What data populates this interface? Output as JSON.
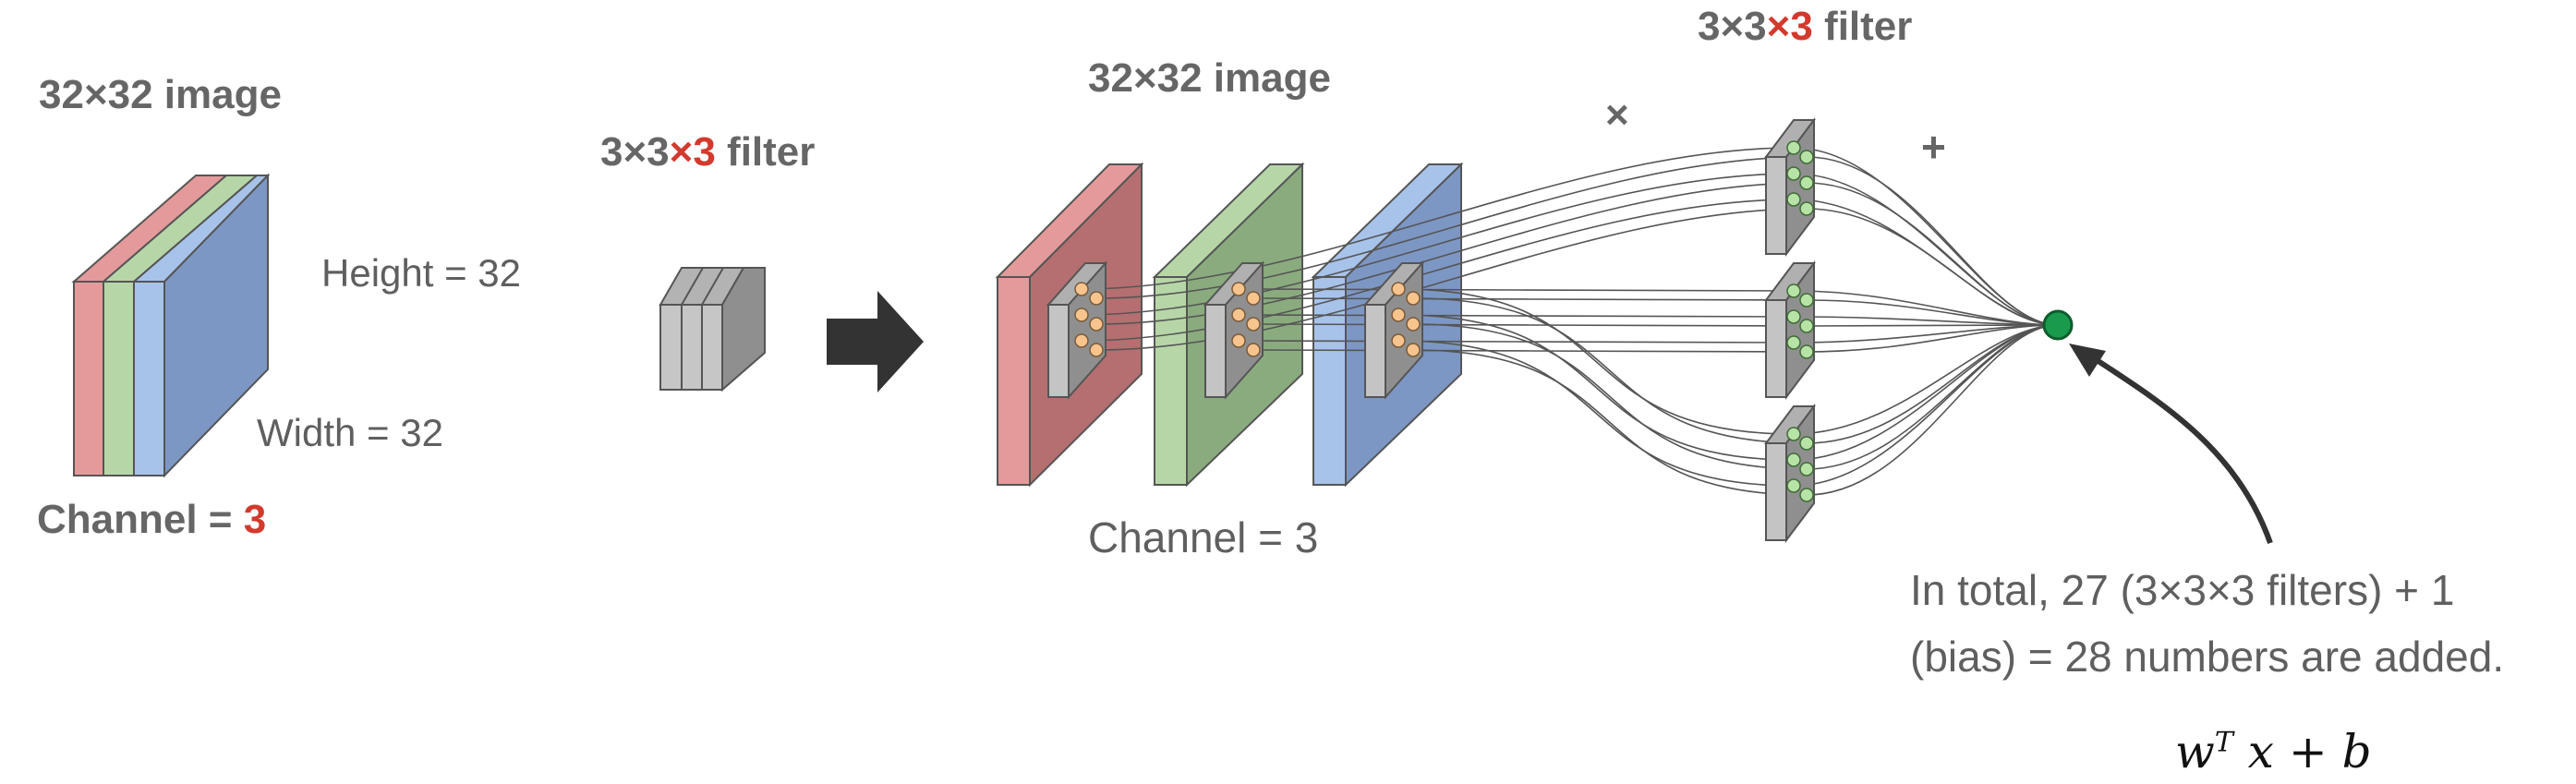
{
  "left_panel": {
    "title": "32×32 image",
    "height_label": "Height = 32",
    "width_label": "Width = 32",
    "channel_prefix": "Channel = ",
    "channel_value": "3"
  },
  "filter_small": {
    "prefix": "3×3",
    "accent": "×3",
    "suffix": " filter"
  },
  "right_panel": {
    "title": "32×32 image",
    "channel_label": "Channel = 3",
    "filter_prefix": "3×3",
    "filter_accent": "×3",
    "filter_suffix": " filter",
    "multiply_symbol": "×",
    "plus_symbol": "+"
  },
  "note": {
    "line1": "In total, 27 (3×3×3 filters) + 1",
    "line2": "(bias) = 28 numbers are added."
  },
  "formula": {
    "w": "w",
    "t": "T",
    "rest": "x + b"
  },
  "colors": {
    "red_channel": "#e49a9a",
    "green_channel": "#b7d6a8",
    "blue_channel": "#a8c3ea",
    "accent": "#d23a2e",
    "output_node": "#1a9a4c",
    "input_node": "#f7c48d",
    "filter_node": "#b8e3a7"
  }
}
